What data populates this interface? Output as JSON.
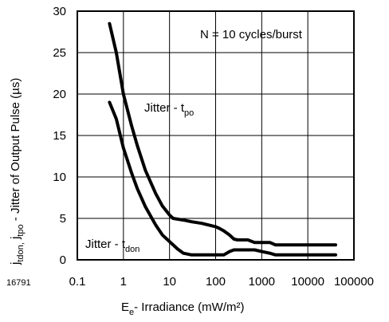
{
  "figure_id": "16791",
  "chart_data": {
    "type": "line",
    "title": "",
    "xlabel": {
      "main": "E",
      "sub": "e",
      "rest": "- Irradiance (mW/m²)"
    },
    "ylabel": {
      "segments": [
        {
          "t": "j",
          "sub": false
        },
        {
          "t": "tdon,",
          "sub": true
        },
        {
          "t": " j",
          "sub": false
        },
        {
          "t": "tpo",
          "sub": true
        },
        {
          "t": " - Jitter of Output Pulse (µs)",
          "sub": false
        }
      ]
    },
    "x_scale": "log",
    "xlim": [
      0.1,
      100000
    ],
    "ylim": [
      0,
      30
    ],
    "x_ticks": [
      "0.1",
      "1",
      "10",
      "100",
      "1000",
      "10000",
      "100000"
    ],
    "y_ticks": [
      "0",
      "5",
      "10",
      "15",
      "20",
      "25",
      "30"
    ],
    "grid": true,
    "annotation": "N = 10 cycles/burst",
    "series": [
      {
        "name": "Jitter - tpo",
        "label_main": "Jitter - t",
        "label_sub": "po",
        "x": [
          0.5,
          0.7,
          1,
          1.5,
          2,
          3,
          5,
          7,
          10,
          12,
          20,
          30,
          50,
          100,
          120,
          150,
          200,
          250,
          300,
          500,
          700,
          1000,
          1500,
          2000,
          3000,
          5000,
          10000,
          20000,
          40000
        ],
        "y": [
          28.5,
          25,
          20,
          16.2,
          13.8,
          10.8,
          8,
          6.5,
          5.4,
          5.0,
          4.8,
          4.6,
          4.4,
          4.0,
          3.8,
          3.5,
          3.0,
          2.5,
          2.4,
          2.4,
          2.1,
          2.1,
          2.1,
          1.8,
          1.8,
          1.8,
          1.8,
          1.8,
          1.8
        ]
      },
      {
        "name": "Jitter - tdon",
        "label_main": "Jitter - t",
        "label_sub": "don",
        "x": [
          0.5,
          0.7,
          1,
          1.5,
          2,
          3,
          5,
          7,
          10,
          15,
          20,
          30,
          50,
          100,
          150,
          200,
          250,
          300,
          500,
          700,
          1000,
          1500,
          2000,
          3000,
          5000,
          10000,
          20000,
          40000
        ],
        "y": [
          19,
          17,
          13.5,
          10.5,
          8.6,
          6.4,
          4.2,
          3.0,
          2.2,
          1.3,
          0.8,
          0.6,
          0.6,
          0.6,
          0.6,
          1.0,
          1.2,
          1.2,
          1.2,
          1.2,
          1.0,
          0.8,
          0.6,
          0.6,
          0.6,
          0.6,
          0.6,
          0.6
        ]
      }
    ]
  }
}
